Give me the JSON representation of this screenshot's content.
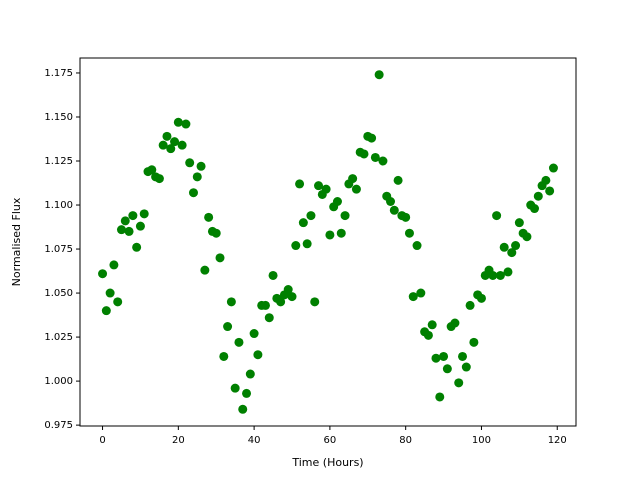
{
  "chart_data": {
    "type": "scatter",
    "x_label": "Time (Hours)",
    "y_label": "Normalised Flux",
    "color": "#008000",
    "x": [
      0,
      1,
      2,
      3,
      4,
      5,
      6,
      7,
      8,
      9,
      10,
      11,
      12,
      13,
      14,
      15,
      16,
      17,
      18,
      19,
      20,
      21,
      22,
      23,
      24,
      25,
      26,
      27,
      28,
      29,
      30,
      31,
      32,
      33,
      34,
      35,
      36,
      37,
      38,
      39,
      40,
      41,
      42,
      43,
      44,
      45,
      46,
      47,
      48,
      49,
      50,
      51,
      52,
      53,
      54,
      55,
      56,
      57,
      58,
      59,
      60,
      61,
      62,
      63,
      64,
      65,
      66,
      67,
      68,
      69,
      70,
      71,
      72,
      73,
      74,
      75,
      76,
      77,
      78,
      79,
      80,
      81,
      82,
      83,
      84,
      85,
      86,
      87,
      88,
      89,
      90,
      91,
      92,
      93,
      94,
      95,
      96,
      97,
      98,
      99,
      100,
      101,
      102,
      103,
      104,
      105,
      106,
      107,
      108,
      109,
      110,
      111,
      112,
      113,
      114,
      115,
      116,
      117,
      118,
      119
    ],
    "values": [
      1.061,
      1.04,
      1.05,
      1.066,
      1.045,
      1.086,
      1.091,
      1.085,
      1.094,
      1.076,
      1.088,
      1.095,
      1.119,
      1.12,
      1.116,
      1.115,
      1.134,
      1.139,
      1.132,
      1.136,
      1.147,
      1.134,
      1.146,
      1.124,
      1.107,
      1.116,
      1.122,
      1.063,
      1.093,
      1.085,
      1.084,
      1.07,
      1.014,
      1.031,
      1.045,
      0.996,
      1.022,
      0.984,
      0.993,
      1.004,
      1.027,
      1.015,
      1.043,
      1.043,
      1.036,
      1.06,
      1.047,
      1.045,
      1.049,
      1.052,
      1.048,
      1.077,
      1.112,
      1.09,
      1.078,
      1.094,
      1.045,
      1.111,
      1.106,
      1.109,
      1.083,
      1.099,
      1.102,
      1.084,
      1.094,
      1.112,
      1.115,
      1.109,
      1.13,
      1.129,
      1.139,
      1.138,
      1.127,
      1.174,
      1.125,
      1.105,
      1.102,
      1.097,
      1.114,
      1.094,
      1.093,
      1.084,
      1.048,
      1.077,
      1.05,
      1.028,
      1.026,
      1.032,
      1.013,
      0.991,
      1.014,
      1.007,
      1.031,
      1.033,
      0.999,
      1.014,
      1.008,
      1.043,
      1.022,
      1.049,
      1.047,
      1.06,
      1.063,
      1.06,
      1.094,
      1.06,
      1.076,
      1.062,
      1.073,
      1.077,
      1.09,
      1.084,
      1.082,
      1.1,
      1.098,
      1.105,
      1.111,
      1.114,
      1.108,
      1.121
    ],
    "xlim": [
      -5.95,
      124.95
    ],
    "ylim": [
      0.9745,
      1.1835
    ],
    "xticks": [
      0,
      20,
      40,
      60,
      80,
      100,
      120
    ],
    "yticks": [
      0.975,
      {
        "value": 1.0,
        "label": "1.000"
      },
      1.025,
      {
        "value": 1.05,
        "label": "1.050"
      },
      1.075,
      {
        "value": 1.1,
        "label": "1.100"
      },
      1.125,
      {
        "value": 1.15,
        "label": "1.150"
      },
      1.175
    ]
  }
}
